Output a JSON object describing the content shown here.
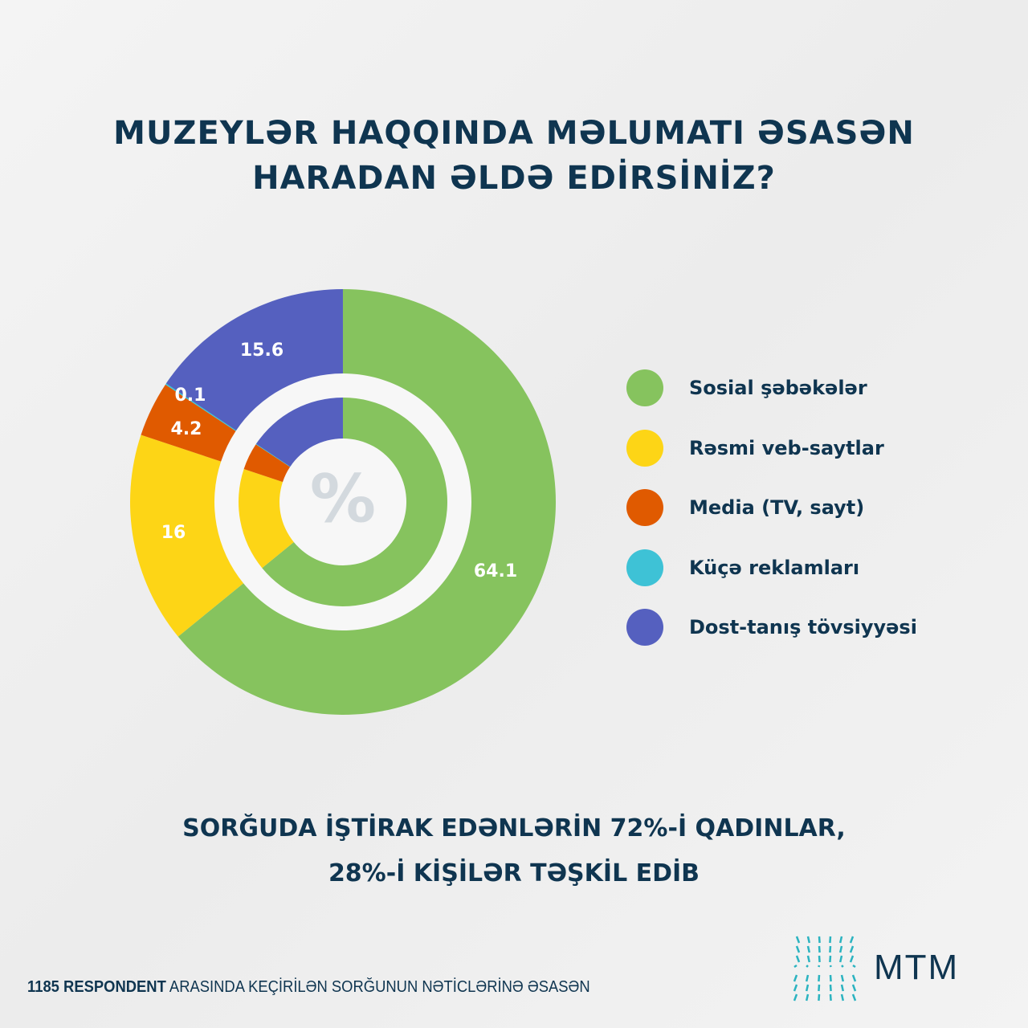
{
  "title_lines": [
    "MUZEYLƏR HAQQINDA MƏLUMATI ƏSASƏN",
    "HARADAN ƏLDƏ EDİRSİNİZ?"
  ],
  "chart_data": {
    "type": "pie",
    "variant": "double-donut",
    "center_label": "%",
    "start": "top",
    "direction": "clockwise",
    "categories": [
      "Sosial şəbəkələr",
      "Rəsmi veb-saytlar",
      "Media (TV, sayt)",
      "Küçə reklamları",
      "Dost-tanış tövsiyyəsi"
    ],
    "values": [
      64.1,
      16,
      4.2,
      0.1,
      15.6
    ],
    "value_labels": [
      "64.1",
      "16",
      "4.2",
      "0.1",
      "15.6"
    ],
    "colors": [
      "#86c35e",
      "#fdd516",
      "#e05a00",
      "#3ec2d6",
      "#5560bf"
    ],
    "legend_position": "right"
  },
  "subtitle_lines": [
    "SORĞUDA İŞTİRAK EDƏNLƏRİN 72%-İ QADINLAR,",
    "28%-İ KİŞİLƏR TƏŞKİL EDİB"
  ],
  "footer": {
    "bold": "1185 RESPONDENT",
    "rest": " ARASINDA KEÇİRİLƏN SORĞUNUN NƏTİCLƏRİNƏ ƏSASƏN"
  },
  "logo": {
    "text": "MTM",
    "color": "#2bb3c0"
  }
}
